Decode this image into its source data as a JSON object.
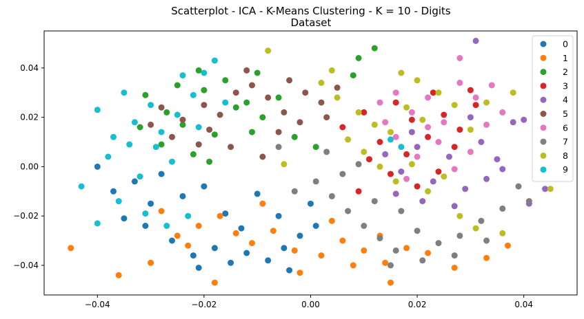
{
  "chart_data": {
    "type": "scatter",
    "title": "Scatterplot - ICA - K-Means Clustering - K = 10 - Digits",
    "subtitle": "Dataset",
    "xlabel": "",
    "ylabel": "",
    "xlim": [
      -0.05,
      0.05
    ],
    "ylim": [
      -0.052,
      0.055
    ],
    "xticks": [
      -0.04,
      -0.02,
      0.0,
      0.02,
      0.04
    ],
    "xtick_labels": [
      "−0.04",
      "−0.02",
      "0.00",
      "0.02",
      "0.04"
    ],
    "yticks": [
      -0.04,
      -0.02,
      0.0,
      0.02,
      0.04
    ],
    "ytick_labels": [
      "−0.04",
      "−0.02",
      "0.00",
      "0.02",
      "0.04"
    ],
    "grid": false,
    "legend_position": "top-right",
    "series": [
      {
        "name": "0",
        "color": "#1f77b4",
        "points": [
          [
            -0.035,
            -0.021
          ],
          [
            -0.03,
            -0.015
          ],
          [
            -0.026,
            -0.03
          ],
          [
            -0.022,
            -0.036
          ],
          [
            -0.018,
            -0.033
          ],
          [
            -0.015,
            -0.039
          ],
          [
            -0.012,
            -0.035
          ],
          [
            -0.008,
            -0.038
          ],
          [
            -0.005,
            -0.033
          ],
          [
            -0.002,
            -0.028
          ],
          [
            0.001,
            -0.024
          ],
          [
            -0.01,
            -0.011
          ],
          [
            -0.016,
            -0.019
          ],
          [
            -0.024,
            -0.012
          ],
          [
            -0.031,
            -0.024
          ],
          [
            -0.037,
            -0.01
          ],
          [
            -0.04,
            0.0
          ],
          [
            -0.033,
            -0.006
          ],
          [
            -0.028,
            -0.003
          ],
          [
            -0.02,
            -0.008
          ],
          [
            -0.013,
            -0.025
          ],
          [
            -0.006,
            -0.02
          ],
          [
            0.0,
            -0.015
          ],
          [
            -0.004,
            -0.042
          ],
          [
            -0.021,
            -0.041
          ]
        ]
      },
      {
        "name": "1",
        "color": "#ff7f0e",
        "points": [
          [
            -0.045,
            -0.033
          ],
          [
            -0.036,
            -0.044
          ],
          [
            -0.03,
            -0.039
          ],
          [
            -0.025,
            -0.028
          ],
          [
            -0.021,
            -0.024
          ],
          [
            -0.018,
            -0.047
          ],
          [
            -0.014,
            -0.027
          ],
          [
            -0.011,
            -0.031
          ],
          [
            -0.007,
            -0.026
          ],
          [
            -0.003,
            -0.034
          ],
          [
            0.002,
            -0.036
          ],
          [
            0.006,
            -0.03
          ],
          [
            0.01,
            -0.034
          ],
          [
            0.014,
            -0.039
          ],
          [
            0.018,
            -0.033
          ],
          [
            0.022,
            -0.035
          ],
          [
            0.027,
            -0.041
          ],
          [
            0.033,
            -0.037
          ],
          [
            0.037,
            -0.032
          ],
          [
            -0.028,
            -0.018
          ],
          [
            -0.017,
            -0.02
          ],
          [
            -0.009,
            -0.015
          ],
          [
            0.004,
            -0.022
          ],
          [
            0.013,
            -0.028
          ],
          [
            0.015,
            -0.047
          ],
          [
            0.008,
            -0.04
          ],
          [
            -0.002,
            -0.043
          ],
          [
            -0.023,
            -0.032
          ]
        ]
      },
      {
        "name": "2",
        "color": "#2ca02c",
        "points": [
          [
            -0.031,
            0.029
          ],
          [
            -0.027,
            0.022
          ],
          [
            -0.024,
            0.017
          ],
          [
            -0.02,
            0.031
          ],
          [
            -0.016,
            0.035
          ],
          [
            -0.012,
            0.026
          ],
          [
            -0.009,
            0.02
          ],
          [
            -0.006,
            0.028
          ],
          [
            -0.003,
            0.012
          ],
          [
            0.001,
            0.008
          ],
          [
            -0.028,
            0.009
          ],
          [
            -0.022,
            0.005
          ],
          [
            -0.018,
            0.013
          ],
          [
            -0.014,
            0.024
          ],
          [
            -0.01,
            0.038
          ],
          [
            -0.021,
            0.039
          ],
          [
            -0.025,
            0.033
          ],
          [
            0.008,
            0.037
          ],
          [
            0.012,
            0.048
          ],
          [
            0.009,
            0.044
          ],
          [
            -0.032,
            0.016
          ],
          [
            -0.019,
            0.002
          ],
          [
            -0.011,
            0.014
          ]
        ]
      },
      {
        "name": "3",
        "color": "#d62728",
        "points": [
          [
            0.006,
            0.016
          ],
          [
            0.01,
            0.022
          ],
          [
            0.013,
            0.01
          ],
          [
            0.016,
            0.026
          ],
          [
            0.019,
            0.019
          ],
          [
            0.022,
            0.012
          ],
          [
            0.025,
            0.021
          ],
          [
            0.028,
            0.015
          ],
          [
            0.031,
            0.025
          ],
          [
            0.011,
            0.003
          ],
          [
            0.015,
            -0.003
          ],
          [
            0.02,
            -0.008
          ],
          [
            0.024,
            -0.002
          ],
          [
            0.027,
            0.008
          ],
          [
            0.018,
            0.005
          ],
          [
            0.009,
            -0.01
          ],
          [
            0.023,
            0.03
          ],
          [
            0.03,
            0.031
          ]
        ]
      },
      {
        "name": "4",
        "color": "#9467bd",
        "points": [
          [
            0.014,
            0.005
          ],
          [
            0.017,
            -0.002
          ],
          [
            0.02,
            0.008
          ],
          [
            0.023,
            -0.006
          ],
          [
            0.026,
            0.004
          ],
          [
            0.029,
            -0.009
          ],
          [
            0.032,
            0.01
          ],
          [
            0.035,
            0.003
          ],
          [
            0.038,
            0.018
          ],
          [
            0.04,
            0.019
          ],
          [
            0.044,
            -0.009
          ],
          [
            0.041,
            -0.015
          ],
          [
            0.031,
            0.051
          ],
          [
            0.027,
            -0.016
          ],
          [
            0.021,
            -0.014
          ],
          [
            0.016,
            -0.011
          ],
          [
            0.033,
            -0.005
          ],
          [
            0.036,
            -0.001
          ],
          [
            0.019,
            0.014
          ],
          [
            0.03,
            0.02
          ]
        ]
      },
      {
        "name": "5",
        "color": "#8c564b",
        "points": [
          [
            -0.028,
            0.024
          ],
          [
            -0.024,
            0.019
          ],
          [
            -0.02,
            0.025
          ],
          [
            -0.017,
            0.021
          ],
          [
            -0.014,
            0.03
          ],
          [
            -0.011,
            0.033
          ],
          [
            -0.008,
            0.028
          ],
          [
            -0.005,
            0.022
          ],
          [
            -0.002,
            0.018
          ],
          [
            0.002,
            0.026
          ],
          [
            0.005,
            0.032
          ],
          [
            -0.03,
            0.017
          ],
          [
            -0.026,
            0.012
          ],
          [
            -0.019,
            0.015
          ],
          [
            -0.015,
            0.008
          ],
          [
            -0.006,
            0.014
          ],
          [
            -0.001,
            0.03
          ],
          [
            -0.012,
            0.039
          ],
          [
            -0.021,
            0.009
          ],
          [
            -0.009,
            0.004
          ],
          [
            -0.004,
            0.035
          ],
          [
            0.003,
            0.02
          ]
        ]
      },
      {
        "name": "6",
        "color": "#e377c2",
        "points": [
          [
            0.013,
            0.026
          ],
          [
            0.016,
            0.03
          ],
          [
            0.019,
            0.022
          ],
          [
            0.022,
            0.028
          ],
          [
            0.025,
            0.018
          ],
          [
            0.028,
            0.034
          ],
          [
            0.031,
            0.028
          ],
          [
            0.034,
            0.033
          ],
          [
            0.036,
            0.022
          ],
          [
            0.016,
            0.012
          ],
          [
            0.02,
            0.004
          ],
          [
            0.024,
            0.01
          ],
          [
            0.027,
            -0.001
          ],
          [
            0.03,
            0.006
          ],
          [
            0.018,
            -0.005
          ],
          [
            0.022,
            0.016
          ],
          [
            0.028,
            0.044
          ],
          [
            0.014,
            0.018
          ],
          [
            0.033,
            0.017
          ]
        ]
      },
      {
        "name": "7",
        "color": "#7f7f7f",
        "points": [
          [
            0.001,
            -0.006
          ],
          [
            0.004,
            -0.012
          ],
          [
            0.007,
            -0.018
          ],
          [
            0.01,
            -0.024
          ],
          [
            0.013,
            -0.029
          ],
          [
            0.016,
            -0.034
          ],
          [
            0.02,
            -0.026
          ],
          [
            0.024,
            -0.031
          ],
          [
            0.028,
            -0.028
          ],
          [
            0.032,
            -0.022
          ],
          [
            0.036,
            -0.017
          ],
          [
            0.039,
            -0.008
          ],
          [
            0.041,
            -0.014
          ],
          [
            0.003,
            0.006
          ],
          [
            0.006,
            -0.003
          ],
          [
            -0.003,
            -0.01
          ],
          [
            0.009,
            0.001
          ],
          [
            0.015,
            -0.04
          ],
          [
            0.021,
            -0.038
          ],
          [
            0.017,
            -0.018
          ],
          [
            0.027,
            -0.036
          ],
          [
            0.033,
            -0.03
          ],
          [
            0.012,
            -0.014
          ],
          [
            -0.006,
            0.008
          ]
        ]
      },
      {
        "name": "8",
        "color": "#bcbd22",
        "points": [
          [
            -0.008,
            0.047
          ],
          [
            0.002,
            0.034
          ],
          [
            0.005,
            0.028
          ],
          [
            0.009,
            0.022
          ],
          [
            0.012,
            0.017
          ],
          [
            0.015,
            0.014
          ],
          [
            0.018,
            0.024
          ],
          [
            0.021,
            0.019
          ],
          [
            0.024,
            0.03
          ],
          [
            0.027,
            0.025
          ],
          [
            0.03,
            0.015
          ],
          [
            0.033,
            0.026
          ],
          [
            0.038,
            0.03
          ],
          [
            0.01,
            0.006
          ],
          [
            0.013,
            0.0
          ],
          [
            0.016,
            -0.006
          ],
          [
            0.019,
            0.001
          ],
          [
            0.022,
            -0.01
          ],
          [
            0.025,
            -0.004
          ],
          [
            0.028,
            -0.02
          ],
          [
            0.031,
            -0.025
          ],
          [
            0.036,
            -0.027
          ],
          [
            0.045,
            -0.009
          ],
          [
            0.004,
            0.039
          ],
          [
            0.017,
            0.038
          ],
          [
            -0.005,
            0.001
          ],
          [
            0.007,
            0.011
          ],
          [
            0.02,
            0.035
          ]
        ]
      },
      {
        "name": "9",
        "color": "#17becf",
        "points": [
          [
            -0.043,
            -0.008
          ],
          [
            -0.04,
            0.023
          ],
          [
            -0.037,
            0.012
          ],
          [
            -0.035,
            0.03
          ],
          [
            -0.033,
            0.018
          ],
          [
            -0.03,
            0.025
          ],
          [
            -0.028,
            0.014
          ],
          [
            -0.025,
            0.021
          ],
          [
            -0.022,
            0.029
          ],
          [
            -0.02,
            0.038
          ],
          [
            -0.018,
            0.043
          ],
          [
            -0.024,
            0.037
          ],
          [
            -0.029,
            0.008
          ],
          [
            -0.026,
            0.002
          ],
          [
            -0.032,
            -0.004
          ],
          [
            -0.038,
            0.004
          ],
          [
            -0.036,
            -0.014
          ],
          [
            -0.031,
            -0.019
          ],
          [
            -0.027,
            -0.024
          ],
          [
            -0.023,
            -0.02
          ],
          [
            -0.04,
            -0.023
          ],
          [
            -0.034,
            0.009
          ],
          [
            -0.021,
            0.016
          ],
          [
            -0.016,
            0.026
          ],
          [
            0.015,
            0.011
          ],
          [
            0.017,
            0.008
          ]
        ]
      }
    ]
  }
}
